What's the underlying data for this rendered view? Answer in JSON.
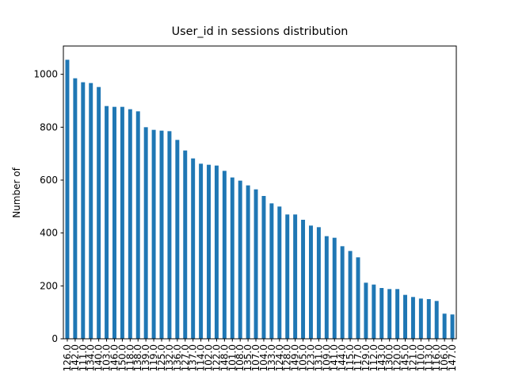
{
  "chart_data": {
    "type": "bar",
    "title": "User_id in sessions distribution",
    "ylabel": "Number of",
    "categories": [
      "126.0",
      "142.0",
      "111.0",
      "134.0",
      "140.0",
      "103.0",
      "146.0",
      "150.0",
      "118.0",
      "138.0",
      "139.0",
      "119.0",
      "125.0",
      "132.0",
      "136.0",
      "127.0",
      "137.0",
      "114.0",
      "102.0",
      "122.0",
      "148.0",
      "101.0",
      "108.0",
      "135.0",
      "107.0",
      "104.0",
      "133.0",
      "124.0",
      "128.0",
      "149.0",
      "105.0",
      "123.0",
      "131.0",
      "109.0",
      "141.0",
      "144.0",
      "115.0",
      "117.0",
      "129.0",
      "112.0",
      "143.0",
      "130.0",
      "120.0",
      "145.0",
      "121.0",
      "110.0",
      "113.0",
      "116.0",
      "106.0",
      "147.0"
    ],
    "values": [
      1055,
      985,
      970,
      967,
      952,
      880,
      877,
      877,
      868,
      860,
      800,
      790,
      787,
      785,
      752,
      712,
      682,
      662,
      658,
      655,
      635,
      610,
      598,
      580,
      565,
      540,
      512,
      500,
      470,
      470,
      450,
      428,
      422,
      388,
      382,
      350,
      332,
      308,
      212,
      205,
      192,
      188,
      188,
      166,
      158,
      152,
      150,
      143,
      95,
      92
    ],
    "color": "#1f77b4",
    "ylim": [
      0,
      1107
    ],
    "yticks": [
      0,
      200,
      400,
      600,
      800,
      1000
    ]
  }
}
